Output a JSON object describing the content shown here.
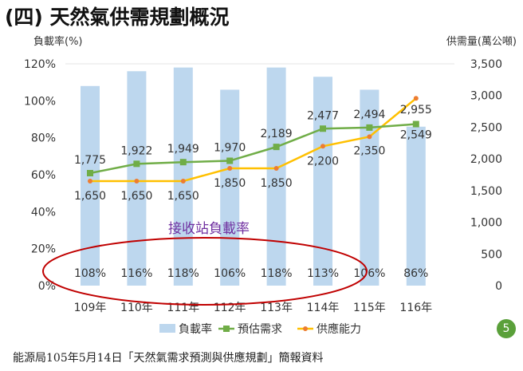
{
  "title": "(四) 天然氣供需規劃概況",
  "source": "能源局105年5月14日「天然氣需求預測與供應規劃」簡報資料",
  "page_number": "5",
  "chart_data": {
    "type": "bar+line",
    "categories": [
      "109年",
      "110年",
      "111年",
      "112年",
      "113年",
      "114年",
      "115年",
      "116年"
    ],
    "y_left": {
      "label": "負載率(%)",
      "range": [
        0,
        120
      ],
      "ticks": [
        "0%",
        "20%",
        "40%",
        "60%",
        "80%",
        "100%",
        "120%"
      ]
    },
    "y_right": {
      "label": "供需量(萬公噸)",
      "range": [
        0,
        3500
      ],
      "ticks": [
        "0",
        "500",
        "1,000",
        "1,500",
        "2,000",
        "2,500",
        "3,000",
        "3,500"
      ]
    },
    "series": [
      {
        "name": "負載率",
        "type": "bar",
        "axis": "left",
        "color": "#bdd7ee",
        "values": [
          108,
          116,
          118,
          106,
          118,
          113,
          106,
          86
        ],
        "labels": [
          "108%",
          "116%",
          "118%",
          "106%",
          "118%",
          "113%",
          "106%",
          "86%"
        ]
      },
      {
        "name": "預估需求",
        "type": "line",
        "axis": "right",
        "color": "#70ad47",
        "values": [
          1775,
          1922,
          1949,
          1970,
          2189,
          2477,
          2494,
          2549
        ],
        "labels": [
          "1,775",
          "1,922",
          "1,949",
          "1,970",
          "2,189",
          "2,477",
          "2,494",
          "2,549"
        ]
      },
      {
        "name": "供應能力",
        "type": "line",
        "axis": "right",
        "color": "#ffc000",
        "marker_color": "#ed7d31",
        "values": [
          1650,
          1650,
          1650,
          1850,
          1850,
          2200,
          2350,
          2955
        ],
        "labels": [
          "1,650",
          "1,650",
          "1,650",
          "1,850",
          "1,850",
          "2,200",
          "2,350",
          "2,955"
        ]
      }
    ],
    "annotation": "接收站負載率",
    "annotation_color": "#7030a0",
    "highlight_color": "#c00000",
    "legend": "bottom"
  }
}
